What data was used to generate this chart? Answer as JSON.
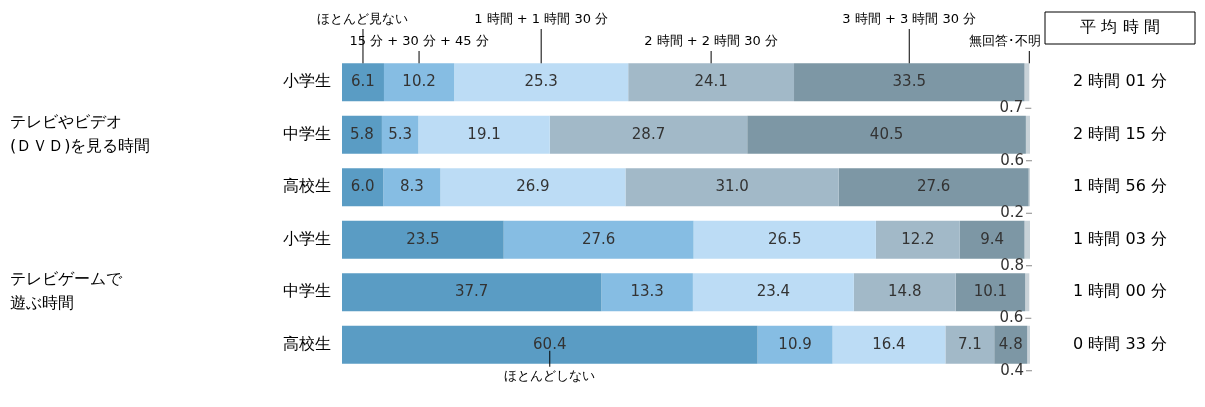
{
  "chart_data": {
    "type": "bar",
    "orientation": "horizontal",
    "stacked": true,
    "categories": [
      "小学生",
      "中学生",
      "高校生",
      "小学生",
      "中学生",
      "高校生"
    ],
    "series": [
      {
        "name": "ほとんど見ない",
        "color": "#5a9cc4",
        "values": [
          6.1,
          5.8,
          6.0,
          23.5,
          37.7,
          60.4
        ],
        "value_labels": [
          "6.1",
          "5.8",
          "6.0",
          "23.5",
          "37.7",
          "60.4"
        ]
      },
      {
        "name": "15 分 + 30 分 + 45 分",
        "color": "#86bde3",
        "values": [
          10.2,
          5.3,
          8.3,
          27.6,
          13.3,
          10.9
        ],
        "value_labels": [
          "10.2",
          "5.3",
          "8.3",
          "27.6",
          "13.3",
          "10.9"
        ]
      },
      {
        "name": "1 時間 + 1 時間 30 分",
        "color": "#bcdcf5",
        "values": [
          25.3,
          19.1,
          26.9,
          26.5,
          23.4,
          16.4
        ],
        "value_labels": [
          "25.3",
          "19.1",
          "26.9",
          "26.5",
          "23.4",
          "16.4"
        ]
      },
      {
        "name": "2 時間 + 2 時間 30 分",
        "color": "#a2b9c8",
        "values": [
          24.1,
          28.7,
          31.0,
          12.2,
          14.8,
          7.1
        ],
        "value_labels": [
          "24.1",
          "28.7",
          "31.0",
          "12.2",
          "14.8",
          "7.1"
        ]
      },
      {
        "name": "3 時間 + 3 時間 30 分",
        "color": "#7d97a5",
        "values": [
          33.5,
          40.5,
          27.6,
          9.4,
          10.1,
          4.8
        ],
        "value_labels": [
          "33.5",
          "40.5",
          "27.6",
          "9.4",
          "10.1",
          "4.8"
        ]
      },
      {
        "name": "無回答･不明",
        "color": "#c8d2d8",
        "values": [
          0.7,
          0.6,
          0.2,
          0.8,
          0.6,
          0.4
        ],
        "value_labels": [
          "0.7",
          "0.6",
          "0.2",
          "0.8",
          "0.6",
          "0.4"
        ]
      }
    ],
    "xlim": [
      0,
      100
    ],
    "tick_labels": "y",
    "annotations": [
      "テレビやビデオ",
      "(ＤＶＤ)を見る時間",
      "テレビゲームで",
      "遊ぶ時間",
      "ほとんどしない",
      "平 均 時 間",
      "2 時間 01 分",
      "2 時間 15 分",
      "1 時間 56 分",
      "1 時間 03 分",
      "1 時間 00 分",
      "0 時間 33 分"
    ]
  }
}
